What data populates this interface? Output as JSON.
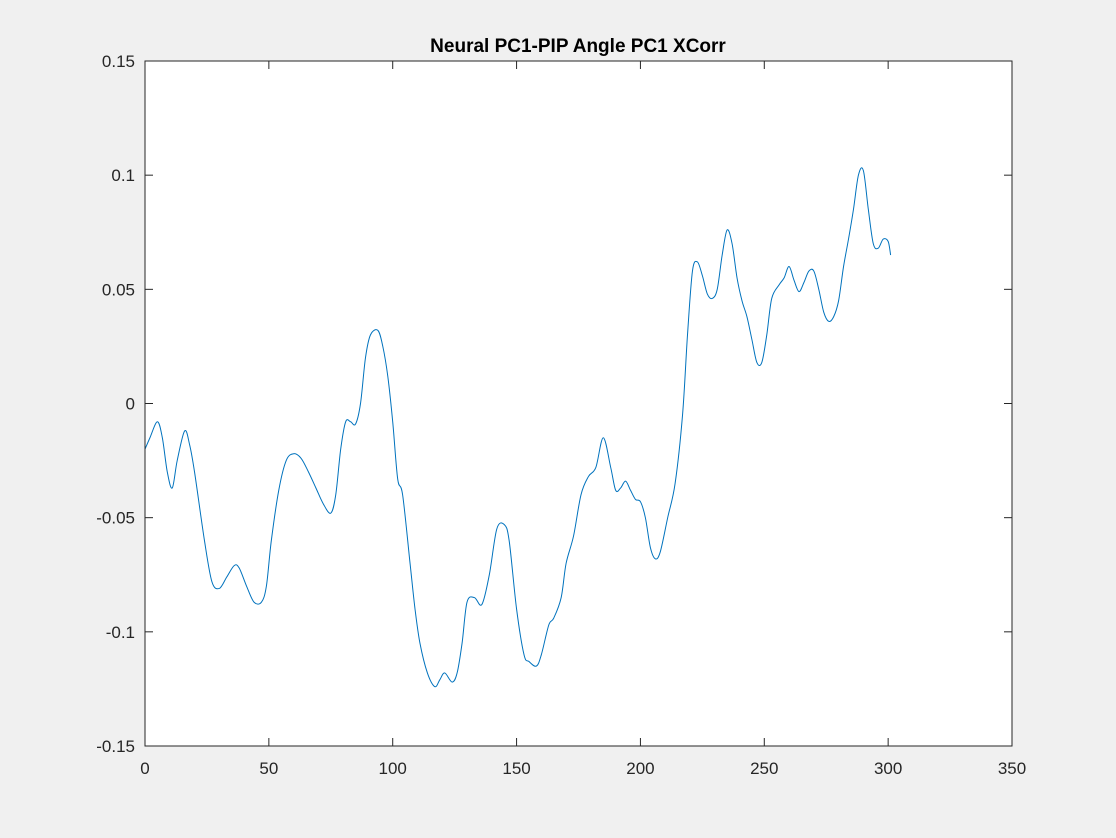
{
  "window": {
    "background": "#f0f0f0"
  },
  "chart_data": {
    "type": "line",
    "title": "Neural PC1-PIP Angle PC1 XCorr",
    "xlabel": "",
    "ylabel": "",
    "xlim": [
      0,
      350
    ],
    "ylim": [
      -0.15,
      0.15
    ],
    "xticks": [
      0,
      50,
      100,
      150,
      200,
      250,
      300,
      350
    ],
    "xtick_labels": [
      "0",
      "50",
      "100",
      "150",
      "200",
      "250",
      "300",
      "350"
    ],
    "yticks": [
      -0.15,
      -0.1,
      -0.05,
      0,
      0.05,
      0.1,
      0.15
    ],
    "ytick_labels": [
      "-0.15",
      "-0.1",
      "-0.05",
      "0",
      "0.05",
      "0.1",
      "0.15"
    ],
    "grid": false,
    "line_color": "#0072bd",
    "series": [
      {
        "x": [
          0,
          2,
          5,
          7,
          9,
          11,
          13,
          16,
          18,
          20,
          24,
          27,
          30,
          33,
          36,
          38,
          41,
          44,
          47,
          49,
          51,
          54,
          57,
          60,
          63,
          66,
          69,
          72,
          75,
          77,
          79,
          81,
          83,
          85,
          87,
          89,
          91,
          94,
          96,
          98,
          100,
          102,
          104,
          107,
          109,
          111,
          114,
          117,
          119,
          121,
          124,
          126,
          128,
          130,
          133,
          136,
          139,
          142,
          145,
          147,
          150,
          153,
          155,
          158,
          160,
          163,
          165,
          168,
          170,
          173,
          176,
          179,
          182,
          185,
          188,
          190,
          192,
          194,
          196,
          198,
          200,
          202,
          204,
          206,
          208,
          211,
          214,
          217,
          219,
          221,
          223,
          225,
          227,
          229,
          231,
          233,
          235,
          237,
          239,
          241,
          243,
          245,
          247,
          249,
          251,
          253,
          256,
          258,
          260,
          262,
          264,
          266,
          268,
          270,
          272,
          274,
          276,
          278,
          280,
          282,
          284,
          286,
          288,
          290,
          292,
          294,
          296,
          298,
          300,
          301
        ],
        "y": [
          -0.02,
          -0.015,
          -0.008,
          -0.015,
          -0.03,
          -0.037,
          -0.025,
          -0.012,
          -0.018,
          -0.03,
          -0.06,
          -0.078,
          -0.081,
          -0.076,
          -0.071,
          -0.072,
          -0.08,
          -0.087,
          -0.087,
          -0.08,
          -0.06,
          -0.038,
          -0.025,
          -0.022,
          -0.024,
          -0.03,
          -0.037,
          -0.044,
          -0.048,
          -0.04,
          -0.02,
          -0.008,
          -0.008,
          -0.009,
          0.0,
          0.02,
          0.03,
          0.032,
          0.025,
          0.012,
          -0.008,
          -0.033,
          -0.04,
          -0.07,
          -0.09,
          -0.105,
          -0.118,
          -0.124,
          -0.121,
          -0.118,
          -0.122,
          -0.118,
          -0.105,
          -0.087,
          -0.085,
          -0.088,
          -0.075,
          -0.055,
          -0.053,
          -0.06,
          -0.09,
          -0.11,
          -0.113,
          -0.115,
          -0.11,
          -0.097,
          -0.094,
          -0.085,
          -0.07,
          -0.058,
          -0.04,
          -0.032,
          -0.028,
          -0.015,
          -0.028,
          -0.038,
          -0.037,
          -0.034,
          -0.038,
          -0.042,
          -0.043,
          -0.05,
          -0.063,
          -0.068,
          -0.065,
          -0.05,
          -0.035,
          -0.005,
          0.03,
          0.058,
          0.062,
          0.056,
          0.048,
          0.046,
          0.05,
          0.065,
          0.076,
          0.07,
          0.055,
          0.045,
          0.038,
          0.028,
          0.018,
          0.018,
          0.03,
          0.046,
          0.052,
          0.055,
          0.06,
          0.054,
          0.049,
          0.053,
          0.058,
          0.058,
          0.05,
          0.04,
          0.036,
          0.038,
          0.045,
          0.06,
          0.072,
          0.085,
          0.1,
          0.102,
          0.085,
          0.07,
          0.068,
          0.072,
          0.071,
          0.065
        ]
      }
    ]
  }
}
